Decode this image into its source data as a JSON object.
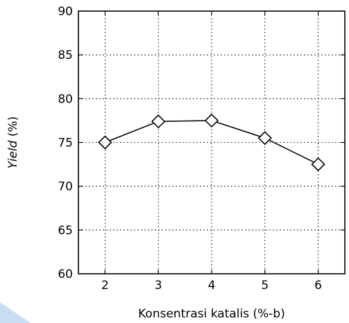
{
  "chart_data": {
    "type": "line",
    "title": "",
    "xlabel": "Konsentrasi katalis (%-b)",
    "ylabel_italic": "Yield",
    "ylabel_rest": " (%)",
    "xlim": [
      1.5,
      6.5
    ],
    "ylim": [
      60,
      90
    ],
    "xticks": [
      2,
      3,
      4,
      5,
      6
    ],
    "yticks": [
      60,
      65,
      70,
      75,
      80,
      85,
      90
    ],
    "grid": true,
    "marker": "diamond-open",
    "series": [
      {
        "x": [
          2,
          3,
          4,
          5,
          6
        ],
        "y": [
          75.0,
          77.4,
          77.5,
          75.5,
          72.5
        ]
      }
    ],
    "colors": {
      "line": "#000000",
      "marker_fill": "#ffffff",
      "decoration": "#c9dcf2"
    }
  }
}
